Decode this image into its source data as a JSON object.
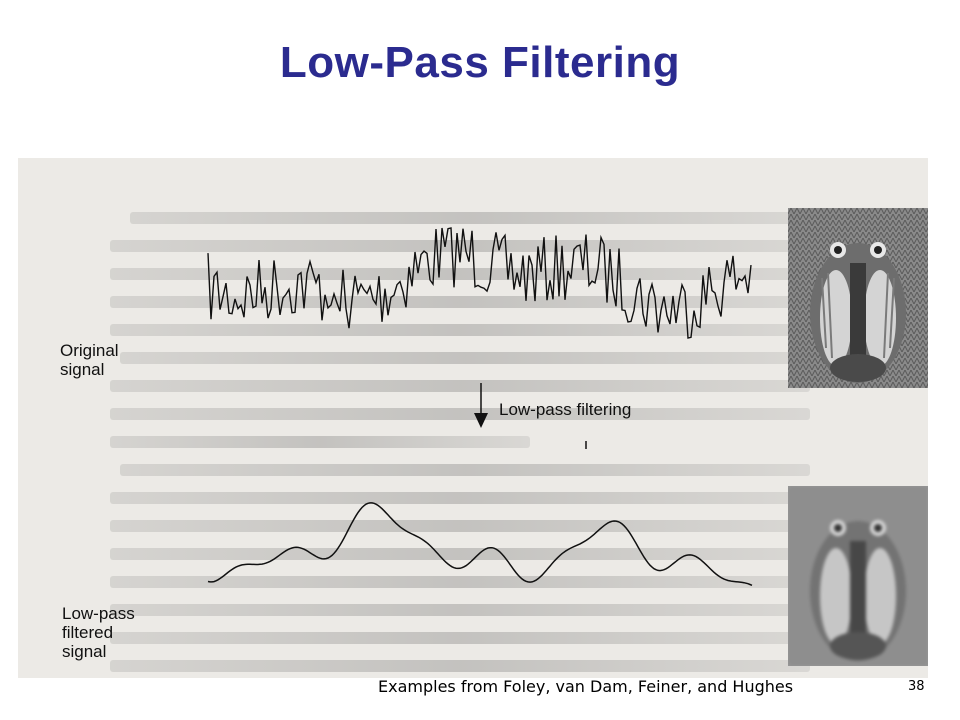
{
  "slide": {
    "title": "Low-Pass Filtering",
    "caption": "Examples from Foley, van Dam, Feiner, and Hughes",
    "page_number": "38"
  },
  "figure": {
    "labels": {
      "original": "Original\nsignal",
      "filter": "Low-pass filtering",
      "filtered": "Low-pass\nfiltered\nsignal"
    },
    "images": {
      "top": "mandrill-icon",
      "bottom": "mandrill-blurred-icon"
    }
  }
}
